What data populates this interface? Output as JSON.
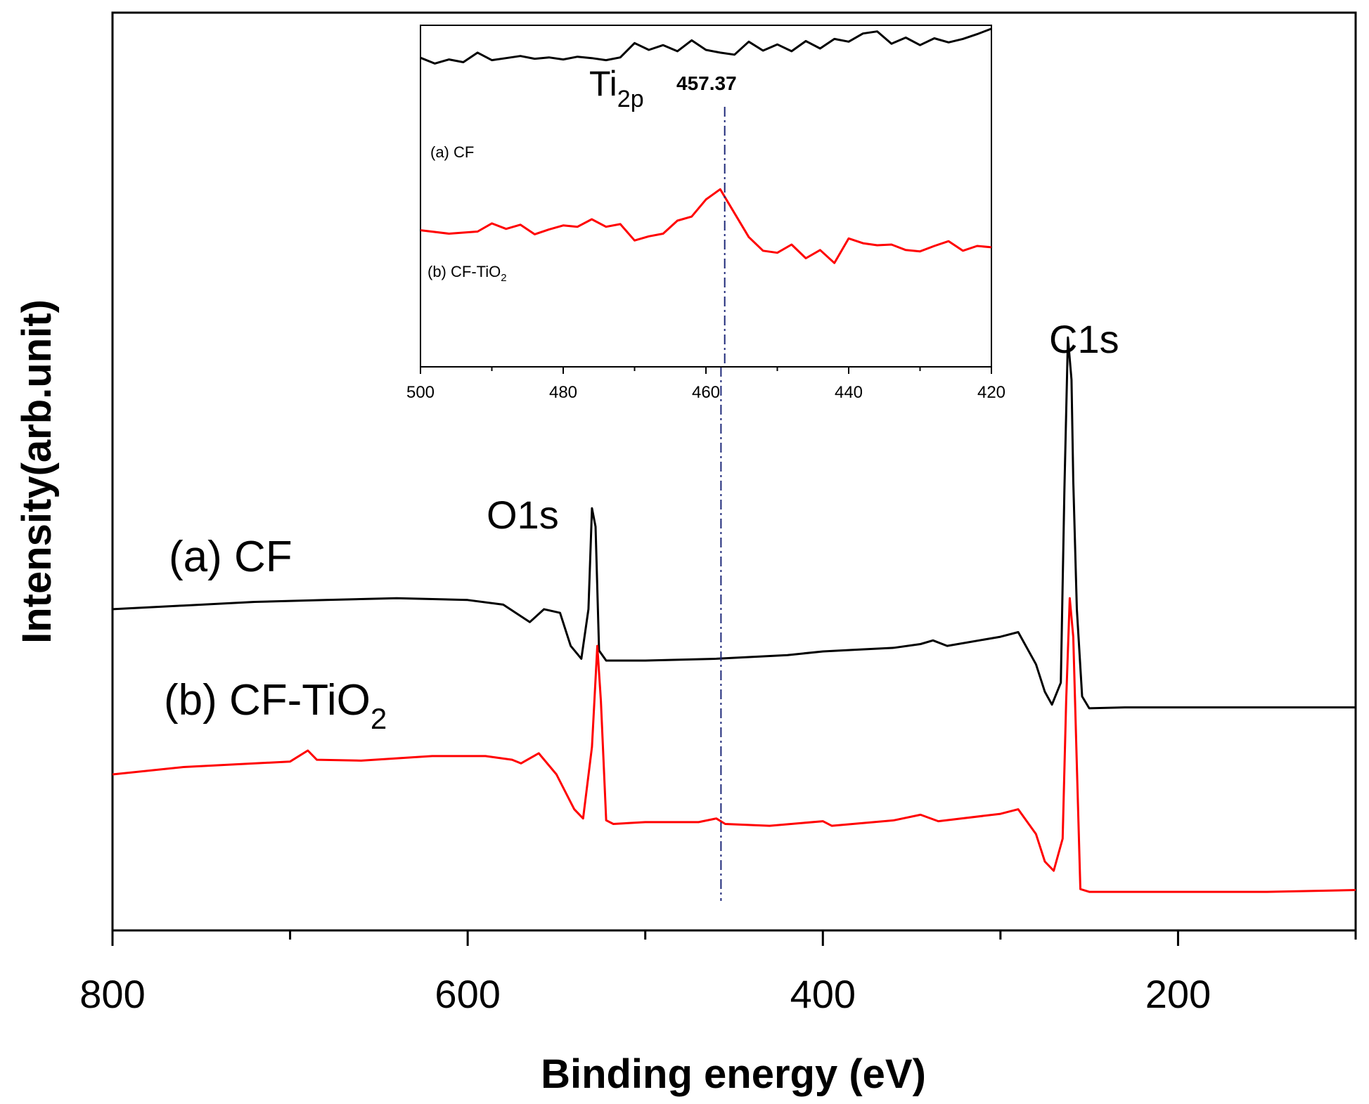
{
  "chart_data": {
    "type": "line",
    "xlabel": "Binding energy (eV)",
    "ylabel": "Intensity(arb.unit)",
    "xlim": [
      800,
      100
    ],
    "ylim": [
      0,
      100
    ],
    "xticks": [
      800,
      600,
      400,
      200
    ],
    "series": [
      {
        "name": "(a) CF",
        "label_main": "(a) CF",
        "color": "#000000",
        "points": [
          [
            800,
            35.0
          ],
          [
            760,
            35.4
          ],
          [
            720,
            35.8
          ],
          [
            680,
            36.0
          ],
          [
            640,
            36.2
          ],
          [
            600,
            36.0
          ],
          [
            580,
            35.5
          ],
          [
            565,
            33.6
          ],
          [
            557,
            35.0
          ],
          [
            548,
            34.6
          ],
          [
            542,
            31.0
          ],
          [
            536,
            29.6
          ],
          [
            532,
            35.0
          ],
          [
            530,
            46.0
          ],
          [
            528,
            44.0
          ],
          [
            526,
            30.5
          ],
          [
            522,
            29.4
          ],
          [
            500,
            29.4
          ],
          [
            460,
            29.6
          ],
          [
            420,
            30.0
          ],
          [
            400,
            30.4
          ],
          [
            380,
            30.6
          ],
          [
            360,
            30.8
          ],
          [
            345,
            31.2
          ],
          [
            338,
            31.6
          ],
          [
            330,
            31.0
          ],
          [
            300,
            32.0
          ],
          [
            290,
            32.5
          ],
          [
            280,
            29.0
          ],
          [
            275,
            26.0
          ],
          [
            271,
            24.6
          ],
          [
            266,
            27.0
          ],
          [
            264,
            48.0
          ],
          [
            262,
            64.6
          ],
          [
            260,
            60.0
          ],
          [
            259,
            49.0
          ],
          [
            257,
            35.0
          ],
          [
            254,
            25.5
          ],
          [
            250,
            24.2
          ],
          [
            230,
            24.3
          ],
          [
            200,
            24.3
          ],
          [
            150,
            24.3
          ],
          [
            100,
            24.3
          ]
        ]
      },
      {
        "name": "(b) CF-TiO2",
        "label_prefix": "(b) CF-TiO",
        "label_sub": "2",
        "color": "#ff0000",
        "points": [
          [
            800,
            17.0
          ],
          [
            760,
            17.8
          ],
          [
            700,
            18.4
          ],
          [
            690,
            19.6
          ],
          [
            685,
            18.6
          ],
          [
            660,
            18.5
          ],
          [
            620,
            19.0
          ],
          [
            590,
            19.0
          ],
          [
            575,
            18.6
          ],
          [
            570,
            18.2
          ],
          [
            560,
            19.3
          ],
          [
            550,
            17.0
          ],
          [
            540,
            13.2
          ],
          [
            535,
            12.2
          ],
          [
            530,
            20.0
          ],
          [
            527,
            31.0
          ],
          [
            525,
            25.0
          ],
          [
            522,
            12.0
          ],
          [
            518,
            11.6
          ],
          [
            500,
            11.8
          ],
          [
            470,
            11.8
          ],
          [
            460,
            12.2
          ],
          [
            455,
            11.6
          ],
          [
            430,
            11.4
          ],
          [
            400,
            11.9
          ],
          [
            395,
            11.4
          ],
          [
            360,
            12.0
          ],
          [
            345,
            12.6
          ],
          [
            335,
            11.9
          ],
          [
            300,
            12.7
          ],
          [
            290,
            13.2
          ],
          [
            280,
            10.5
          ],
          [
            275,
            7.5
          ],
          [
            270,
            6.5
          ],
          [
            265,
            10.0
          ],
          [
            263,
            25.0
          ],
          [
            261,
            36.2
          ],
          [
            259,
            32.0
          ],
          [
            257,
            18.0
          ],
          [
            255,
            4.5
          ],
          [
            250,
            4.2
          ],
          [
            200,
            4.2
          ],
          [
            150,
            4.2
          ],
          [
            100,
            4.4
          ]
        ]
      }
    ],
    "annotations": {
      "peak_o1s": "O1s",
      "peak_c1s": "C1s",
      "ti_main": "Ti",
      "ti_sub": "2p",
      "ti_value": "457.37",
      "dashed_line_x": 457.37
    },
    "inset": {
      "xlim": [
        500,
        420
      ],
      "xticks": [
        500,
        480,
        460,
        440,
        420
      ],
      "ylim": [
        0,
        100
      ],
      "series": [
        {
          "name": "(a) CF",
          "label": "(a) CF",
          "color": "#000000",
          "points": [
            [
              500,
              90.5
            ],
            [
              498,
              88.8
            ],
            [
              496,
              90.0
            ],
            [
              494,
              89.2
            ],
            [
              492,
              92.0
            ],
            [
              490,
              89.8
            ],
            [
              488,
              90.4
            ],
            [
              486,
              91.0
            ],
            [
              484,
              90.2
            ],
            [
              482,
              90.6
            ],
            [
              480,
              90.0
            ],
            [
              478,
              90.8
            ],
            [
              476,
              90.4
            ],
            [
              474,
              89.8
            ],
            [
              472,
              90.6
            ],
            [
              470,
              94.8
            ],
            [
              468,
              92.8
            ],
            [
              466,
              94.2
            ],
            [
              464,
              92.4
            ],
            [
              462,
              95.6
            ],
            [
              460,
              92.8
            ],
            [
              458,
              92.0
            ],
            [
              456,
              91.4
            ],
            [
              454,
              95.2
            ],
            [
              452,
              92.6
            ],
            [
              450,
              94.4
            ],
            [
              448,
              92.4
            ],
            [
              446,
              95.4
            ],
            [
              444,
              93.2
            ],
            [
              442,
              96.0
            ],
            [
              440,
              95.2
            ],
            [
              438,
              97.6
            ],
            [
              436,
              98.2
            ],
            [
              434,
              94.6
            ],
            [
              432,
              96.4
            ],
            [
              430,
              94.2
            ],
            [
              428,
              96.2
            ],
            [
              426,
              95.0
            ],
            [
              424,
              96.0
            ],
            [
              422,
              97.4
            ],
            [
              420,
              99.0
            ]
          ]
        },
        {
          "name": "(b) CF-TiO2",
          "label_prefix": "(b) CF-TiO",
          "label_sub": "2",
          "color": "#ff0000",
          "points": [
            [
              500,
              40.0
            ],
            [
              496,
              39.0
            ],
            [
              492,
              39.6
            ],
            [
              490,
              42.0
            ],
            [
              488,
              40.4
            ],
            [
              486,
              41.6
            ],
            [
              484,
              38.8
            ],
            [
              482,
              40.2
            ],
            [
              480,
              41.4
            ],
            [
              478,
              41.0
            ],
            [
              476,
              43.2
            ],
            [
              474,
              41.0
            ],
            [
              472,
              41.8
            ],
            [
              470,
              37.0
            ],
            [
              468,
              38.2
            ],
            [
              466,
              39.0
            ],
            [
              464,
              42.8
            ],
            [
              462,
              44.0
            ],
            [
              460,
              49.0
            ],
            [
              458,
              52.0
            ],
            [
              456,
              45.0
            ],
            [
              454,
              38.0
            ],
            [
              452,
              34.0
            ],
            [
              450,
              33.4
            ],
            [
              448,
              35.8
            ],
            [
              446,
              31.8
            ],
            [
              444,
              34.2
            ],
            [
              442,
              30.4
            ],
            [
              440,
              37.6
            ],
            [
              438,
              36.2
            ],
            [
              436,
              35.6
            ],
            [
              434,
              35.8
            ],
            [
              432,
              34.2
            ],
            [
              430,
              33.8
            ],
            [
              428,
              35.4
            ],
            [
              426,
              36.8
            ],
            [
              424,
              34.0
            ],
            [
              422,
              35.4
            ],
            [
              420,
              35.0
            ]
          ]
        }
      ]
    }
  }
}
